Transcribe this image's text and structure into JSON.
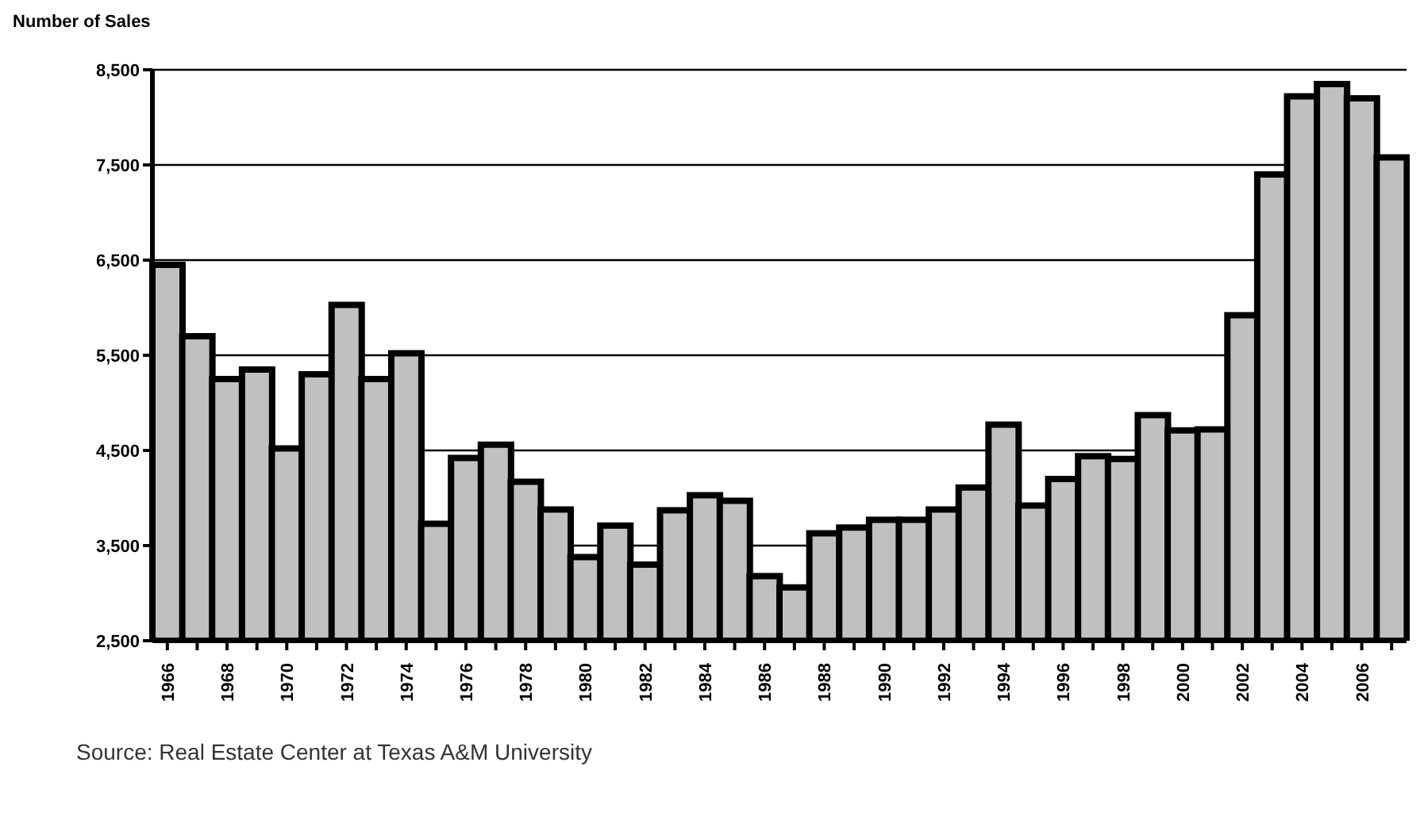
{
  "chart_data": {
    "type": "bar",
    "ylabel": "Number of Sales",
    "categories": [
      "1966",
      null,
      "1968",
      null,
      "1970",
      null,
      "1972",
      null,
      "1974",
      null,
      "1976",
      null,
      "1978",
      null,
      "1980",
      null,
      "1982",
      null,
      "1984",
      null,
      "1986",
      null,
      "1988",
      null,
      "1990",
      null,
      "1992",
      null,
      "1994",
      null,
      "1996",
      null,
      "1998",
      null,
      "2000",
      null,
      "2002",
      null,
      "2004",
      null,
      "2006",
      null
    ],
    "values": [
      6450,
      5700,
      5250,
      5350,
      4520,
      5300,
      6030,
      5250,
      5520,
      3730,
      4420,
      4560,
      4170,
      3880,
      3380,
      3710,
      3300,
      3870,
      4030,
      3970,
      3180,
      3060,
      3630,
      3690,
      3770,
      3770,
      3880,
      4110,
      4770,
      3920,
      4200,
      4440,
      4410,
      4870,
      4710,
      4720,
      5920,
      7400,
      8220,
      8350,
      8200,
      7580
    ],
    "color": "#c0c0c0",
    "ylim": [
      2500,
      8500
    ],
    "yticks": [
      {
        "value": 2500,
        "label": "2,500"
      },
      {
        "value": 3500,
        "label": "3,500"
      },
      {
        "value": 4500,
        "label": "4,500"
      },
      {
        "value": 5500,
        "label": "5,500"
      },
      {
        "value": 6500,
        "label": "6,500"
      },
      {
        "value": 7500,
        "label": "7,500"
      },
      {
        "value": 8500,
        "label": "8,500"
      }
    ],
    "grid": "y",
    "annotations": [
      "Source: Real Estate Center at Texas A&M University"
    ]
  }
}
